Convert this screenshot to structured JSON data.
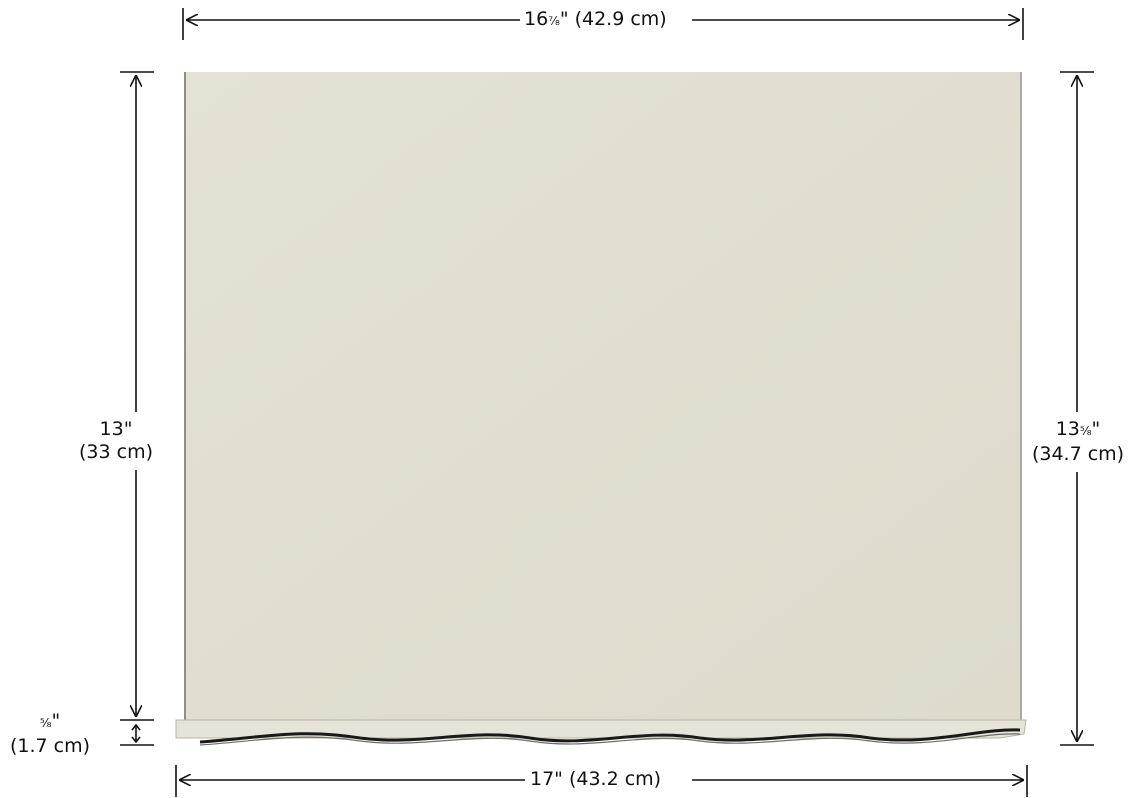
{
  "colors": {
    "panel": "#e2dfd3",
    "panel_edge": "#bdbcb2",
    "line": "#111111",
    "background": "#ffffff"
  },
  "dimensions": {
    "top_width": {
      "whole": "16",
      "fraction": "⁷⁄₈",
      "suffix": "\" (42.9 cm)"
    },
    "bottom_width": {
      "text": "17\" (43.2 cm)"
    },
    "left_height": {
      "line1": "13\"",
      "line2": "(33 cm)"
    },
    "right_height": {
      "whole": "13",
      "fraction": "⁵⁄₈",
      "suffix": "\"",
      "line2": "(34.7 cm)"
    },
    "valance_height": {
      "fraction": "⁵⁄₈",
      "suffix": "\"",
      "line2": "(1.7 cm)"
    }
  },
  "icons": [
    "arrow-left-icon",
    "arrow-right-icon",
    "arrow-up-icon",
    "arrow-down-icon"
  ]
}
